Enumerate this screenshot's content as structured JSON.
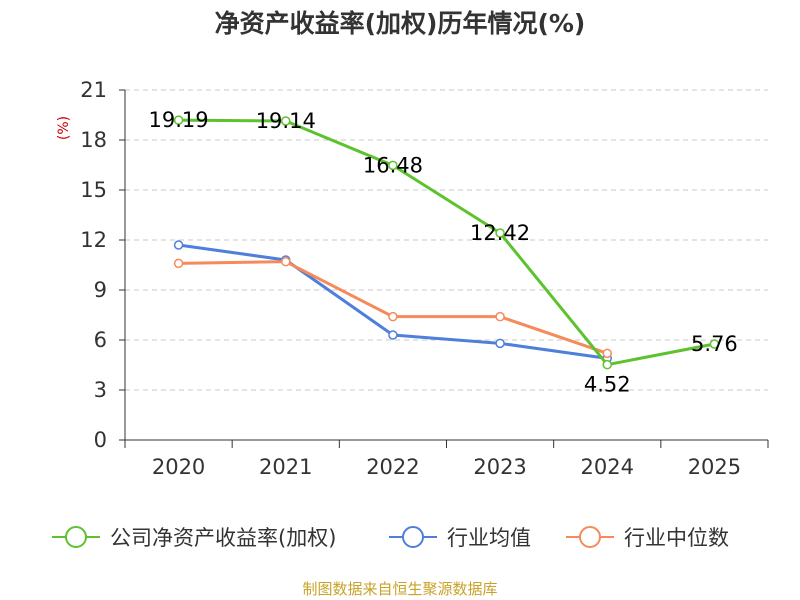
{
  "chart_data": {
    "type": "line",
    "title": "净资产收益率(加权)历年情况(%)",
    "ylabel": "(%)",
    "xlabel": "",
    "categories": [
      "2020",
      "2021",
      "2022",
      "2023",
      "2024",
      "2025"
    ],
    "ylim": [
      0,
      21
    ],
    "yticks": [
      0,
      3,
      6,
      9,
      12,
      15,
      18,
      21
    ],
    "grid": true,
    "legend_position": "bottom",
    "series": [
      {
        "name": "公司净资产收益率(加权)",
        "color": "#5cc22d",
        "values": [
          19.19,
          19.14,
          16.48,
          12.42,
          4.52,
          5.76
        ],
        "labels": [
          "19.19",
          "19.14",
          "16.48",
          "12.42",
          "4.52",
          "5.76"
        ]
      },
      {
        "name": "行业均值",
        "color": "#4e7fdb",
        "values": [
          11.7,
          10.8,
          6.3,
          5.8,
          4.9,
          null
        ]
      },
      {
        "name": "行业中位数",
        "color": "#f58a5a",
        "values": [
          10.6,
          10.7,
          7.4,
          7.4,
          5.2,
          null
        ]
      }
    ]
  },
  "source": "制图数据来自恒生聚源数据库"
}
